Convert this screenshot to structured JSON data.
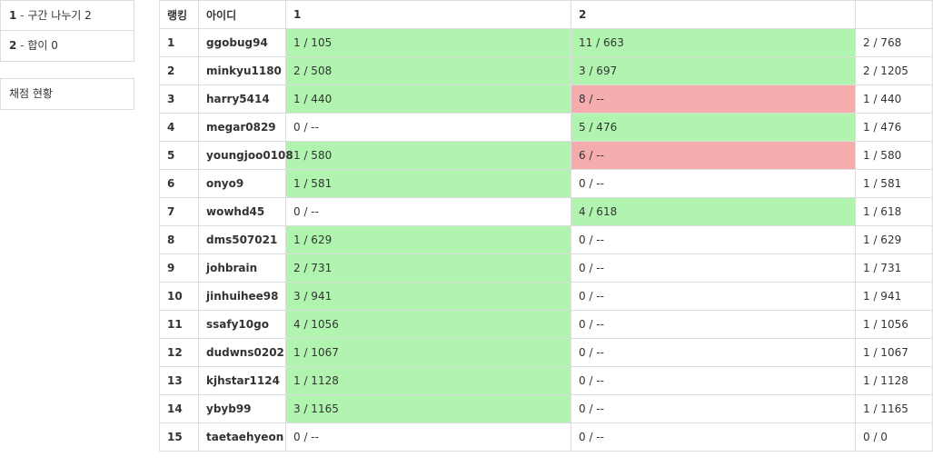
{
  "sidebar": {
    "problems": [
      {
        "num": "1",
        "sep": " - ",
        "title": "구간 나누기 2"
      },
      {
        "num": "2",
        "sep": " - ",
        "title": "합이 0"
      }
    ],
    "status_link": "채점 현황"
  },
  "scoreboard": {
    "headers": {
      "rank": "랭킹",
      "id": "아이디",
      "p1": "1",
      "p2": "2",
      "total": ""
    },
    "colors": {
      "accepted": "#b0f4b0",
      "wrong": "#f4acac"
    },
    "rows": [
      {
        "rank": "1",
        "id": "ggobug94",
        "p1": "1 / 105",
        "p1_state": "ac",
        "p2": "11 / 663",
        "p2_state": "ac",
        "total": "2 / 768"
      },
      {
        "rank": "2",
        "id": "minkyu1180",
        "p1": "2 / 508",
        "p1_state": "ac",
        "p2": "3 / 697",
        "p2_state": "ac",
        "total": "2 / 1205"
      },
      {
        "rank": "3",
        "id": "harry5414",
        "p1": "1 / 440",
        "p1_state": "ac",
        "p2": "8 / --",
        "p2_state": "wa",
        "total": "1 / 440"
      },
      {
        "rank": "4",
        "id": "megar0829",
        "p1": "0 / --",
        "p1_state": "none",
        "p2": "5 / 476",
        "p2_state": "ac",
        "total": "1 / 476"
      },
      {
        "rank": "5",
        "id": "youngjoo0108",
        "p1": "1 / 580",
        "p1_state": "ac",
        "p2": "6 / --",
        "p2_state": "wa",
        "total": "1 / 580"
      },
      {
        "rank": "6",
        "id": "onyo9",
        "p1": "1 / 581",
        "p1_state": "ac",
        "p2": "0 / --",
        "p2_state": "none",
        "total": "1 / 581"
      },
      {
        "rank": "7",
        "id": "wowhd45",
        "p1": "0 / --",
        "p1_state": "none",
        "p2": "4 / 618",
        "p2_state": "ac",
        "total": "1 / 618"
      },
      {
        "rank": "8",
        "id": "dms507021",
        "p1": "1 / 629",
        "p1_state": "ac",
        "p2": "0 / --",
        "p2_state": "none",
        "total": "1 / 629"
      },
      {
        "rank": "9",
        "id": "johbrain",
        "p1": "2 / 731",
        "p1_state": "ac",
        "p2": "0 / --",
        "p2_state": "none",
        "total": "1 / 731"
      },
      {
        "rank": "10",
        "id": "jinhuihee98",
        "p1": "3 / 941",
        "p1_state": "ac",
        "p2": "0 / --",
        "p2_state": "none",
        "total": "1 / 941"
      },
      {
        "rank": "11",
        "id": "ssafy10go",
        "p1": "4 / 1056",
        "p1_state": "ac",
        "p2": "0 / --",
        "p2_state": "none",
        "total": "1 / 1056"
      },
      {
        "rank": "12",
        "id": "dudwns0202",
        "p1": "1 / 1067",
        "p1_state": "ac",
        "p2": "0 / --",
        "p2_state": "none",
        "total": "1 / 1067"
      },
      {
        "rank": "13",
        "id": "kjhstar1124",
        "p1": "1 / 1128",
        "p1_state": "ac",
        "p2": "0 / --",
        "p2_state": "none",
        "total": "1 / 1128"
      },
      {
        "rank": "14",
        "id": "ybyb99",
        "p1": "3 / 1165",
        "p1_state": "ac",
        "p2": "0 / --",
        "p2_state": "none",
        "total": "1 / 1165"
      },
      {
        "rank": "15",
        "id": "taetaehyeon",
        "p1": "0 / --",
        "p1_state": "none",
        "p2": "0 / --",
        "p2_state": "none",
        "total": "0 / 0"
      }
    ]
  }
}
